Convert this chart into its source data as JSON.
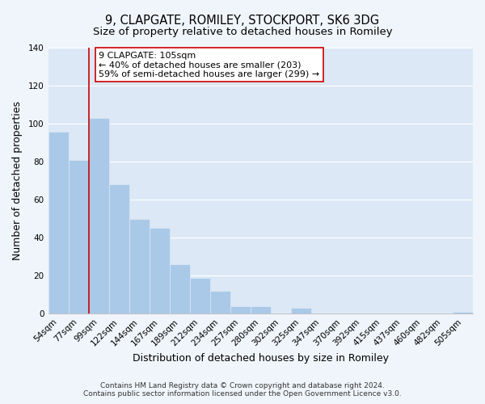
{
  "title": "9, CLAPGATE, ROMILEY, STOCKPORT, SK6 3DG",
  "subtitle": "Size of property relative to detached houses in Romiley",
  "xlabel": "Distribution of detached houses by size in Romiley",
  "ylabel": "Number of detached properties",
  "bar_labels": [
    "54sqm",
    "77sqm",
    "99sqm",
    "122sqm",
    "144sqm",
    "167sqm",
    "189sqm",
    "212sqm",
    "234sqm",
    "257sqm",
    "280sqm",
    "302sqm",
    "325sqm",
    "347sqm",
    "370sqm",
    "392sqm",
    "415sqm",
    "437sqm",
    "460sqm",
    "482sqm",
    "505sqm"
  ],
  "bar_values": [
    96,
    81,
    103,
    68,
    50,
    45,
    26,
    19,
    12,
    4,
    4,
    0,
    3,
    0,
    0,
    0,
    0,
    0,
    0,
    0,
    1
  ],
  "bar_color": "#aac9e8",
  "bar_edge_color": "#aac9e8",
  "vline_color": "#cc0000",
  "vline_index": 2,
  "ylim": [
    0,
    140
  ],
  "yticks": [
    0,
    20,
    40,
    60,
    80,
    100,
    120,
    140
  ],
  "annotation_title": "9 CLAPGATE: 105sqm",
  "annotation_line1": "← 40% of detached houses are smaller (203)",
  "annotation_line2": "59% of semi-detached houses are larger (299) →",
  "annotation_box_facecolor": "#ffffff",
  "annotation_box_edgecolor": "#cc0000",
  "footer1": "Contains HM Land Registry data © Crown copyright and database right 2024.",
  "footer2": "Contains public sector information licensed under the Open Government Licence v3.0.",
  "plot_bg_color": "#dce8f5",
  "fig_bg_color": "#f0f5fb",
  "grid_color": "#ffffff",
  "title_fontsize": 10.5,
  "subtitle_fontsize": 9.5,
  "axis_label_fontsize": 9,
  "tick_fontsize": 7.5,
  "annotation_fontsize": 8,
  "footer_fontsize": 6.5
}
